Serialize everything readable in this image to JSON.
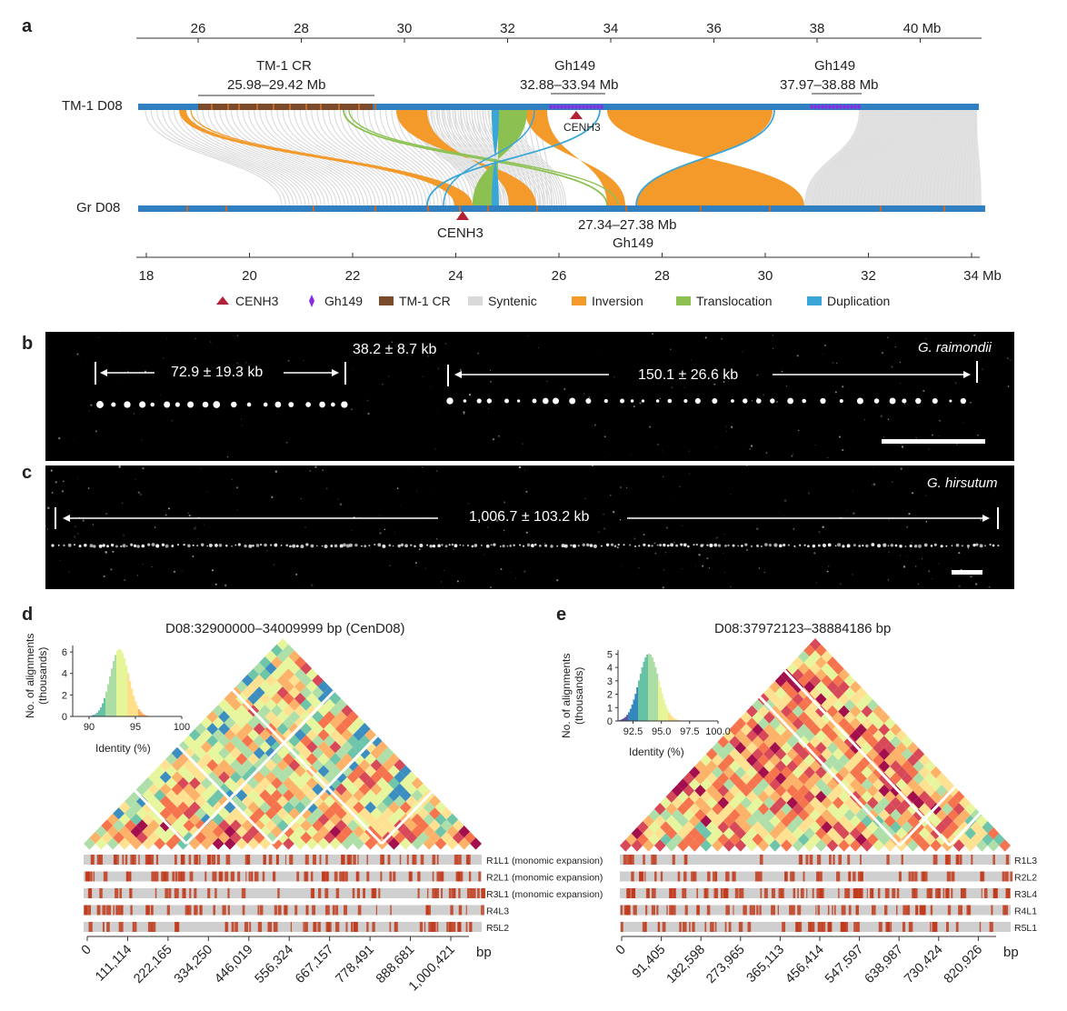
{
  "panel_a": {
    "label": "a",
    "top_axis": {
      "ticks": [
        "26",
        "28",
        "30",
        "32",
        "34",
        "36",
        "38",
        "40 Mb"
      ]
    },
    "bottom_axis": {
      "ticks": [
        "18",
        "20",
        "22",
        "24",
        "26",
        "28",
        "30",
        "32",
        "34 Mb"
      ]
    },
    "tm1_label": "TM-1 D08",
    "gr_label": "Gr D08",
    "ann_tm1cr_title": "TM-1 CR",
    "ann_tm1cr_range": "25.98–29.42 Mb",
    "ann_gh149a_title": "Gh149",
    "ann_gh149a_range": "32.88–33.94 Mb",
    "ann_gh149b_title": "Gh149",
    "ann_gh149b_range": "37.97–38.88 Mb",
    "cenh3_top": "CENH3",
    "cenh3_bottom": "CENH3",
    "gr_gh149_range": "27.34–27.38 Mb",
    "gr_gh149_title": "Gh149",
    "legend": [
      {
        "name": "CENH3",
        "color": "#b22234",
        "shape": "triangle"
      },
      {
        "name": "Gh149",
        "color": "#8a2be2",
        "shape": "diamond"
      },
      {
        "name": "TM-1 CR",
        "color": "#7a4a2a",
        "shape": "square"
      },
      {
        "name": "Syntenic",
        "color": "#d9d9d9",
        "shape": "square"
      },
      {
        "name": "Inversion",
        "color": "#f39a2b",
        "shape": "square"
      },
      {
        "name": "Translocation",
        "color": "#8cc152",
        "shape": "square"
      },
      {
        "name": "Duplication",
        "color": "#3aa6d8",
        "shape": "square"
      }
    ]
  },
  "panel_b": {
    "label": "b",
    "species": "G. raimondii",
    "measure1": "72.9 ± 19.3 kb",
    "measure2": "38.2 ± 8.7 kb",
    "measure3": "150.1 ± 26.6 kb"
  },
  "panel_c": {
    "label": "c",
    "species": "G. hirsutum",
    "measure1": "1,006.7 ± 103.2 kb"
  },
  "panel_d": {
    "label": "d",
    "title": "D08:32900000–34009999 bp (CenD08)",
    "hist_ylabel": "No. of alignments (thousands)",
    "hist_ylabel1": "No. of alignments",
    "hist_ylabel2": "(thousands)",
    "hist_xlabel": "Identity (%)",
    "hist_yticks": [
      "0",
      "2",
      "4",
      "6"
    ],
    "hist_xticks": [
      "90",
      "95",
      "100"
    ],
    "tracks": [
      "R1L1 (monomic expansion)",
      "R2L1 (monomic expansion)",
      "R3L1 (monomic expansion)",
      "R4L3",
      "R5L2"
    ],
    "xticks": [
      "0",
      "111,114",
      "222,165",
      "334,250",
      "446,019",
      "556,324",
      "667,157",
      "778,491",
      "888,681",
      "1,000,421"
    ],
    "xunit": "bp"
  },
  "panel_e": {
    "label": "e",
    "title": "D08:37972123–38884186 bp",
    "hist_ylabel1": "No. of alignments",
    "hist_ylabel2": "(thousands)",
    "hist_xlabel": "Identity (%)",
    "hist_yticks": [
      "0",
      "1",
      "2",
      "3",
      "4",
      "5"
    ],
    "hist_xticks": [
      "92.5",
      "95.0",
      "97.5",
      "100.0"
    ],
    "tracks": [
      "R1L3",
      "R2L2",
      "R3L4",
      "R4L1",
      "R5L1"
    ],
    "xticks": [
      "0",
      "91,405",
      "182,598",
      "273,965",
      "365,113",
      "456,414",
      "547,597",
      "638,987",
      "730,424",
      "820,926"
    ],
    "xunit": "bp"
  },
  "colors": {
    "chrom_bar": "#2f7fc1",
    "syntenic": "#d9d9d9",
    "inversion": "#f39a2b",
    "translocation": "#8cc152",
    "duplication": "#3aa6d8",
    "cenh3": "#b22234",
    "gh149": "#8a2be2",
    "tm1cr": "#7a4a2a",
    "track_bg": "#cfcfcf",
    "track_mark": "#c2391b"
  }
}
